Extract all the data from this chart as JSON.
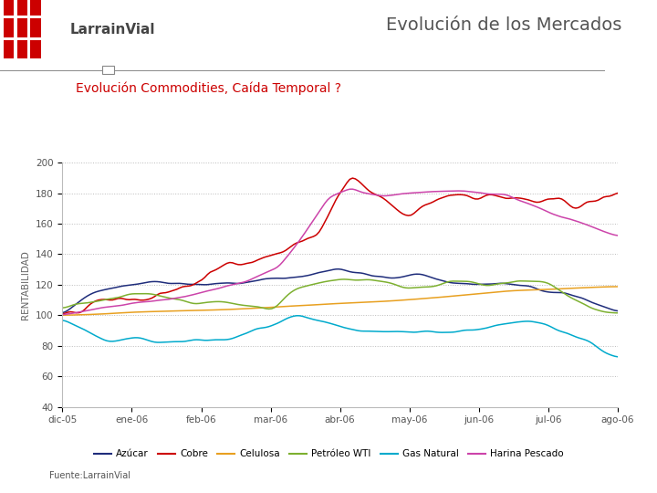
{
  "title": "Evolución de los Mercados",
  "subtitle": "Evolución Commodities, Caída Temporal ?",
  "source": "Fuente:LarrainVial",
  "ylabel": "RENTABILIDAD",
  "x_labels": [
    "dic-05",
    "ene-06",
    "feb-06",
    "mar-06",
    "abr-06",
    "may-06",
    "jun-06",
    "jul-06",
    "ago-06"
  ],
  "ylim": [
    40,
    200
  ],
  "yticks": [
    40,
    60,
    80,
    100,
    120,
    140,
    160,
    180,
    200
  ],
  "colors": {
    "Azúcar": "#1F2D7B",
    "Cobre": "#CC0000",
    "Celulosa": "#E8A020",
    "Petróleo WTI": "#7DB030",
    "Gas Natural": "#00AACC",
    "Harina Pescado": "#CC44AA"
  },
  "background_color": "#FFFFFF",
  "grid_color": "#AAAAAA",
  "title_color": "#555555",
  "subtitle_color": "#CC0000",
  "logo_text": "LarrainVial",
  "n_points": 200
}
